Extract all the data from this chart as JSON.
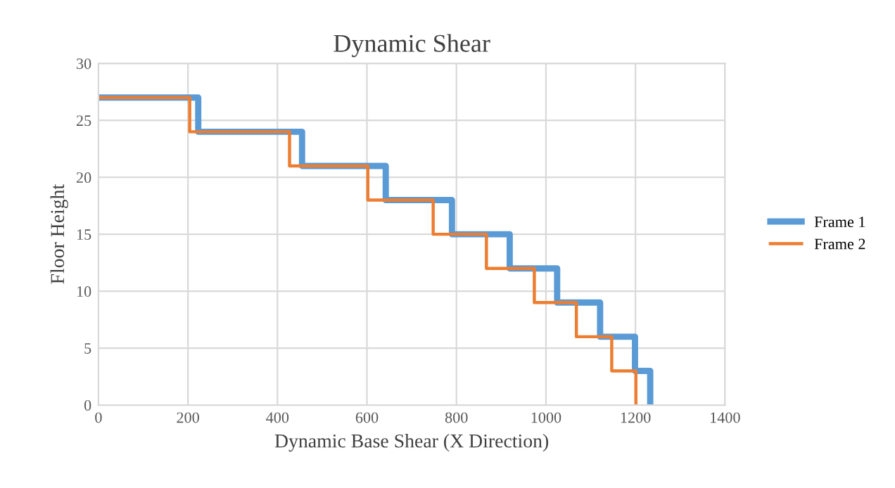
{
  "chart_data": {
    "type": "step",
    "title": "Dynamic Shear",
    "xlabel": "Dynamic Base Shear (X Direction)",
    "ylabel": "Floor Height",
    "series": [
      {
        "name": "Frame 1",
        "color": "#5b9bd5",
        "x": [
          0,
          223,
          455,
          642,
          790,
          919,
          1025,
          1121,
          1199,
          1233
        ],
        "values": [
          27,
          24,
          21,
          18,
          15,
          12,
          9,
          6,
          3,
          0
        ]
      },
      {
        "name": "Frame 2",
        "color": "#ed7d31",
        "x": [
          0,
          204,
          427,
          602,
          748,
          867,
          974,
          1068,
          1147,
          1201
        ],
        "values": [
          27,
          24,
          21,
          18,
          15,
          12,
          9,
          6,
          3,
          0
        ]
      }
    ],
    "xlim": [
      0,
      1400
    ],
    "xticks": [
      0,
      200,
      400,
      600,
      800,
      1000,
      1200,
      1400
    ],
    "ylim": [
      0,
      30
    ],
    "yticks": [
      0,
      5,
      10,
      15,
      20,
      25,
      30
    ],
    "grid": true,
    "legend": "right"
  }
}
